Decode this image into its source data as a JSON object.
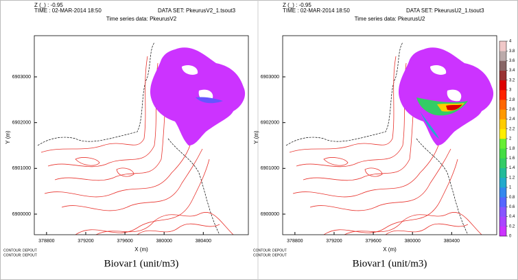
{
  "chart_data": [
    {
      "type": "map",
      "z_label": "Z (_) : -0.95",
      "time_label": "TIME : 02-MAR-2014 18:50",
      "dataset_label": "DATA SET: PkeurusV2_1.tsout3",
      "title": "Time series data: PkeurusV2",
      "xlabel": "X (m)",
      "ylabel": "Y (m)",
      "contour_notes": [
        "CONTOUR: DEPOUT",
        "CONTOUR: DEPOUT"
      ],
      "variable_label": "Biovar1 (unit/m3)",
      "xlim": [
        378675,
        380860
      ],
      "xticks": [
        378800,
        379200,
        379600,
        380000,
        380400
      ],
      "ylim": [
        6899550,
        6903900
      ],
      "yticks": [
        6900000,
        6901000,
        6902000,
        6903000
      ]
    },
    {
      "type": "map",
      "z_label": "Z (_) : -0.95",
      "time_label": "TIME : 02-MAR-2014 18:50",
      "dataset_label": "DATA SET: PkeurusU2_1.tsout3",
      "title": "Time series data: PkeurusU2",
      "xlabel": "X (m)",
      "ylabel": "Y (m)",
      "contour_notes": [
        "CONTOUR: DEPOUT",
        "CONTOUR: DEPOUT"
      ],
      "variable_label": "Biovar1 (unit/m3)",
      "xlim": [
        378675,
        380860
      ],
      "xticks": [
        378800,
        379200,
        379600,
        380000,
        380400
      ],
      "ylim": [
        6899550,
        6903900
      ],
      "yticks": [
        6900000,
        6901000,
        6902000,
        6903000
      ],
      "colorbar": {
        "lim": [
          0,
          4
        ],
        "ticks": [
          0,
          0.2,
          0.4,
          0.6,
          0.8,
          1,
          1.2,
          1.4,
          1.6,
          1.8,
          2,
          2.2,
          2.4,
          2.6,
          2.8,
          3,
          3.2,
          3.4,
          3.6,
          3.8,
          4
        ],
        "colors": [
          "#cc33ff",
          "#aa44ff",
          "#8855ff",
          "#5566ff",
          "#3388ee",
          "#22aacc",
          "#22bb99",
          "#33cc66",
          "#44dd44",
          "#66ee33",
          "#ffee00",
          "#ffcc00",
          "#ff9900",
          "#ff6600",
          "#ff2200",
          "#dd0000",
          "#993333",
          "#886666",
          "#bbaaaa",
          "#f0c8c8"
        ]
      }
    }
  ]
}
